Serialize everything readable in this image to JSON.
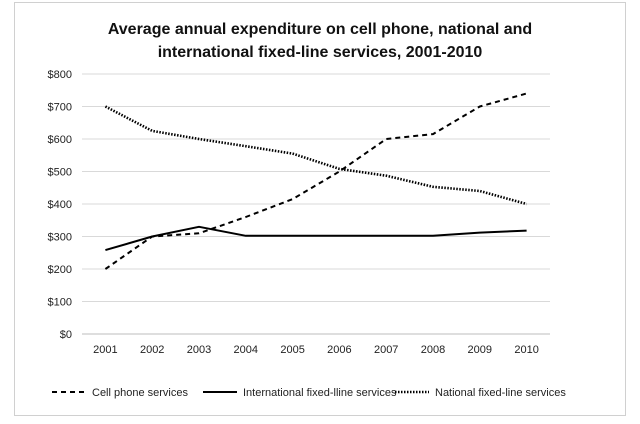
{
  "chart_data": {
    "type": "line",
    "title_lines": [
      "Average annual expenditure on cell phone, national and",
      "international fixed-line services, 2001-2010"
    ],
    "xlabel": "",
    "ylabel": "",
    "x": [
      "2001",
      "2002",
      "2003",
      "2004",
      "2005",
      "2006",
      "2007",
      "2008",
      "2009",
      "2010"
    ],
    "ylim": [
      0,
      800
    ],
    "yticks": [
      "$0",
      "$100",
      "$200",
      "$300",
      "$400",
      "$500",
      "$600",
      "$700",
      "$800"
    ],
    "ytick_values": [
      0,
      100,
      200,
      300,
      400,
      500,
      600,
      700,
      800
    ],
    "grid": true,
    "legend_position": "bottom",
    "series": [
      {
        "name": "Cell phone services",
        "style": "dashed",
        "color": "#000000",
        "values": [
          200,
          300,
          310,
          360,
          415,
          500,
          600,
          615,
          700,
          740
        ]
      },
      {
        "name": "International fixed-lline services",
        "style": "solid",
        "color": "#000000",
        "values": [
          258,
          300,
          330,
          302,
          302,
          302,
          302,
          302,
          312,
          318
        ]
      },
      {
        "name": "National fixed-line services",
        "style": "dotted",
        "color": "#000000",
        "values": [
          700,
          625,
          600,
          578,
          555,
          508,
          487,
          453,
          440,
          400
        ]
      }
    ]
  }
}
